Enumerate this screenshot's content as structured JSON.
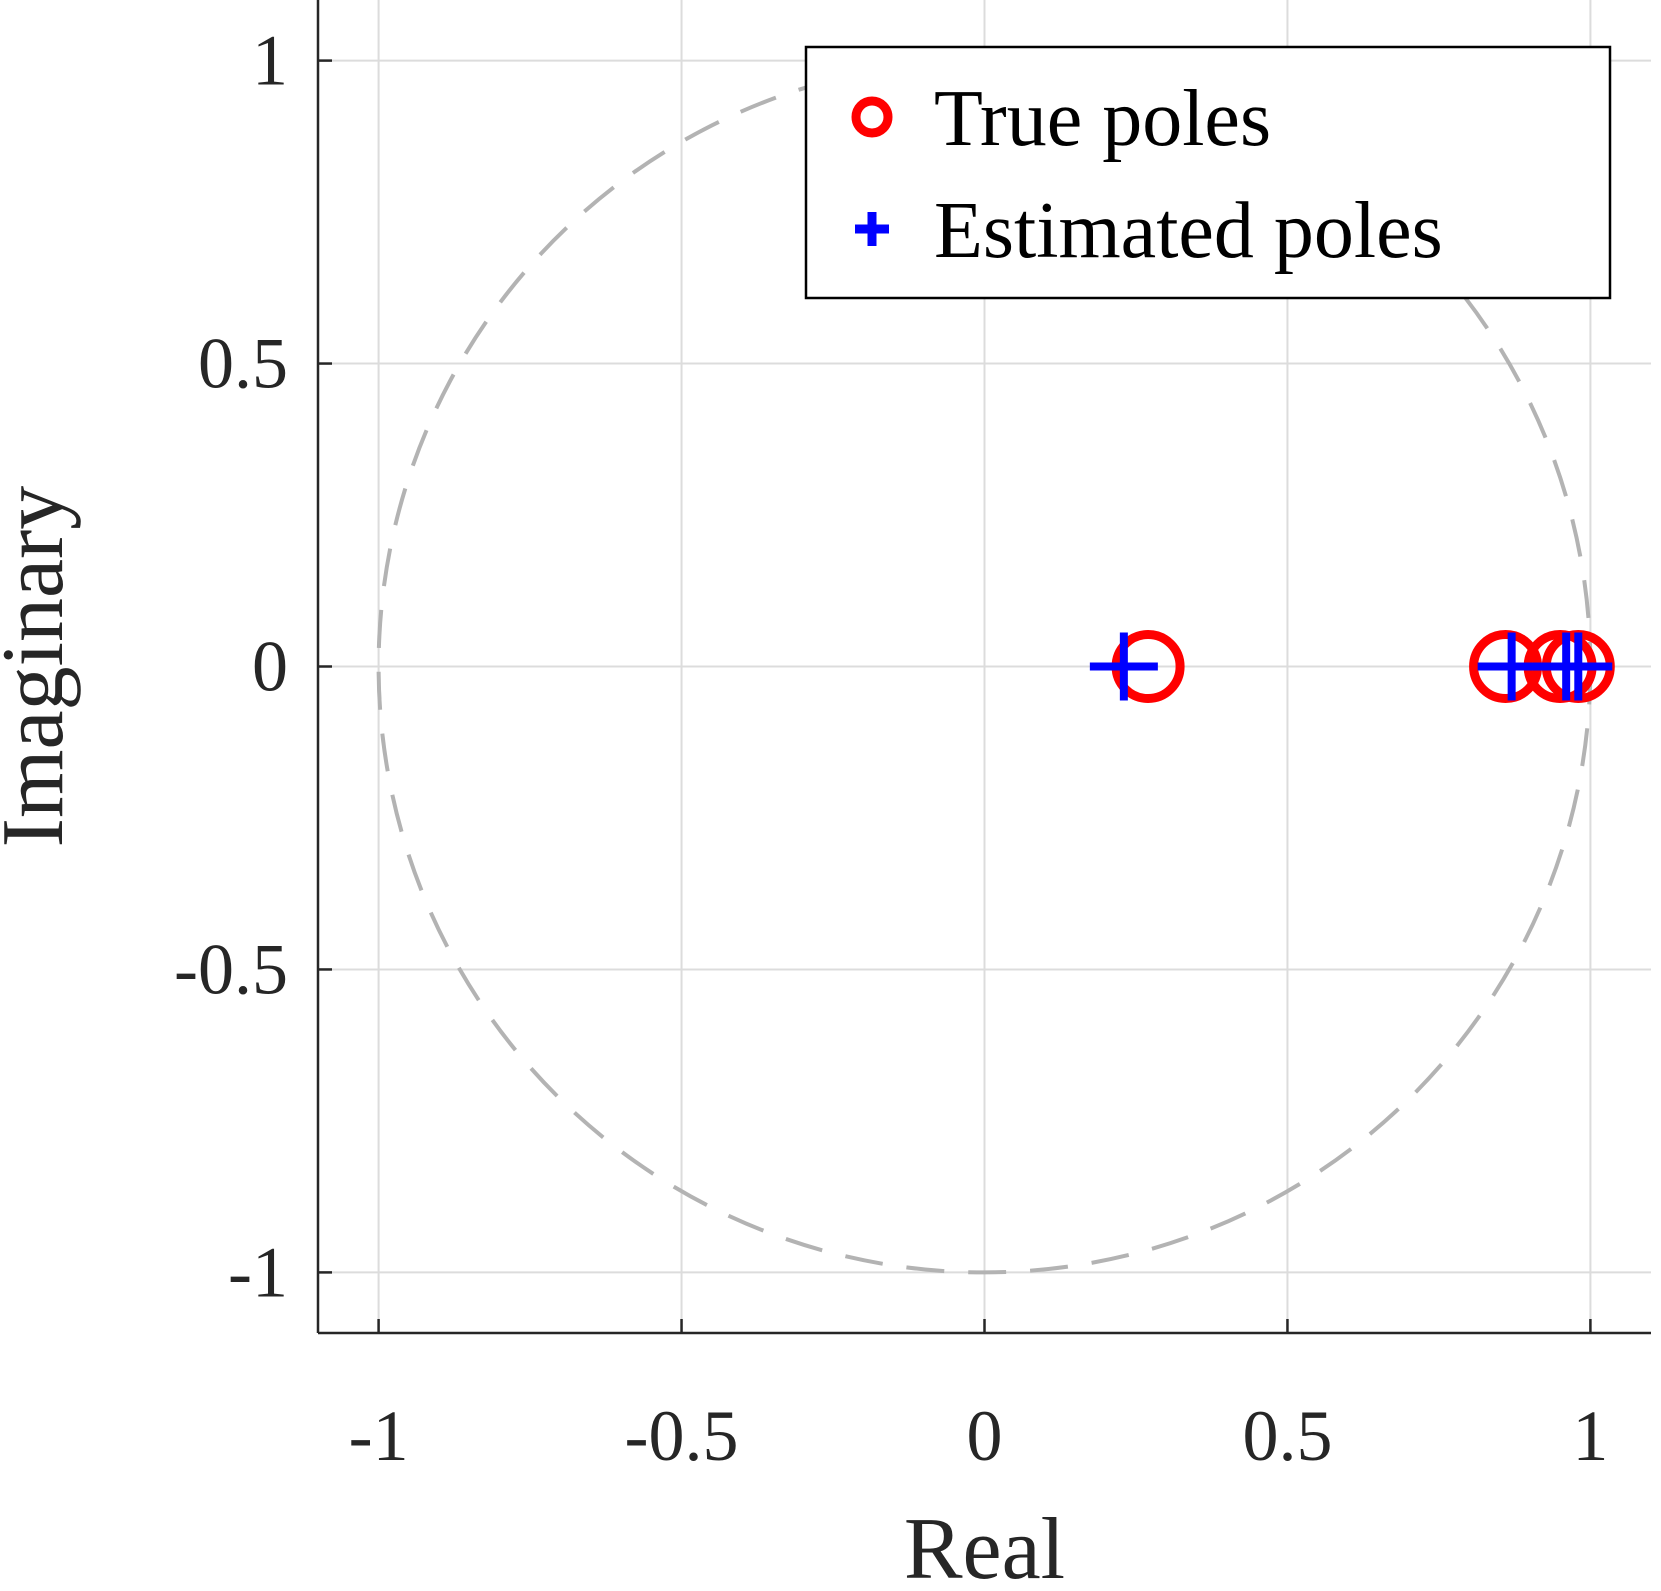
{
  "chart_data": {
    "type": "scatter",
    "title": "",
    "xlabel": "Real",
    "ylabel": "Imaginary",
    "xlim": [
      -1.1,
      1.1
    ],
    "ylim": [
      -1.1,
      1.1
    ],
    "xticks": [
      -1,
      -0.5,
      0,
      0.5,
      1
    ],
    "yticks": [
      -1,
      -0.5,
      0,
      0.5,
      1
    ],
    "xtick_labels": [
      "-1",
      "-0.5",
      "0",
      "0.5",
      "1"
    ],
    "ytick_labels": [
      "-1",
      "-0.5",
      "0",
      "0.5",
      "1"
    ],
    "grid": true,
    "legend_position": "top-right",
    "unit_circle": {
      "radius": 1,
      "style": "dashed",
      "color": "#b3b3b3"
    },
    "series": [
      {
        "name": "True poles",
        "marker": "circle",
        "color": "#ff0000",
        "points": [
          {
            "x": 0.27,
            "y": 0
          },
          {
            "x": 0.86,
            "y": 0
          },
          {
            "x": 0.95,
            "y": 0
          },
          {
            "x": 0.98,
            "y": 0
          }
        ]
      },
      {
        "name": "Estimated poles",
        "marker": "plus",
        "color": "#0000ff",
        "points": [
          {
            "x": 0.23,
            "y": 0
          },
          {
            "x": 0.87,
            "y": 0
          },
          {
            "x": 0.96,
            "y": 0
          },
          {
            "x": 0.98,
            "y": 0
          }
        ]
      }
    ]
  }
}
